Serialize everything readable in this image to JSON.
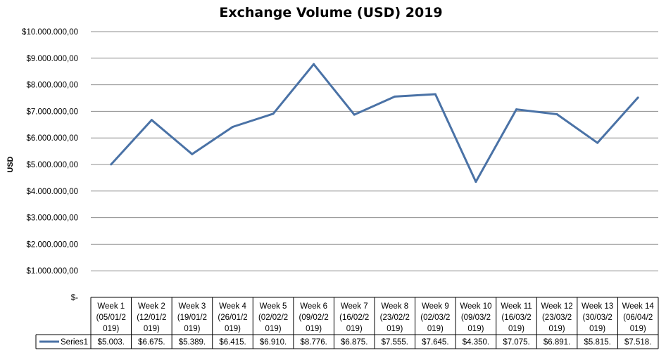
{
  "chart_data": {
    "type": "line",
    "title": "Exchange Volume (USD) 2019",
    "ylabel": "USD",
    "xlabel": "",
    "ylim": [
      0,
      10000000
    ],
    "y_ticks": [
      0,
      1000000,
      2000000,
      3000000,
      4000000,
      5000000,
      6000000,
      7000000,
      8000000,
      9000000,
      10000000
    ],
    "y_tick_labels": [
      "$-",
      "$1.000.000,00",
      "$2.000.000,00",
      "$3.000.000,00",
      "$4.000.000,00",
      "$5.000.000,00",
      "$6.000.000,00",
      "$7.000.000,00",
      "$8.000.000,00",
      "$9.000.000,00",
      "$10.000.000,00"
    ],
    "grid": true,
    "legend": "data-table",
    "categories": [
      [
        "Week 1",
        "(05/01/2",
        "019)"
      ],
      [
        "Week 2",
        "(12/01/2",
        "019)"
      ],
      [
        "Week 3",
        "(19/01/2",
        "019)"
      ],
      [
        "Week 4",
        "(26/01/2",
        "019)"
      ],
      [
        "Week 5",
        "(02/02/2",
        "019)"
      ],
      [
        "Week 6",
        "(09/02/2",
        "019)"
      ],
      [
        "Week 7",
        "(16/02/2",
        "019)"
      ],
      [
        "Week 8",
        "(23/02/2",
        "019)"
      ],
      [
        "Week 9",
        "(02/03/2",
        "019)"
      ],
      [
        "Week 10",
        "(09/03/2",
        "019)"
      ],
      [
        "Week 11",
        "(16/03/2",
        "019)"
      ],
      [
        "Week 12",
        "(23/03/2",
        "019)"
      ],
      [
        "Week 13",
        "(30/03/2",
        "019)"
      ],
      [
        "Week 14",
        "(06/04/2",
        "019)"
      ]
    ],
    "series": [
      {
        "name": "Series1",
        "color": "#4a72a6",
        "values": [
          5003000,
          6675000,
          5389000,
          6415000,
          6910000,
          8776000,
          6875000,
          7555000,
          7645000,
          4350000,
          7075000,
          6891000,
          5815000,
          7518000
        ],
        "value_labels": [
          "$5.003.",
          "$6.675.",
          "$5.389.",
          "$6.415.",
          "$6.910.",
          "$8.776.",
          "$6.875.",
          "$7.555.",
          "$7.645.",
          "$4.350.",
          "$7.075.",
          "$6.891.",
          "$5.815.",
          "$7.518."
        ]
      }
    ]
  }
}
